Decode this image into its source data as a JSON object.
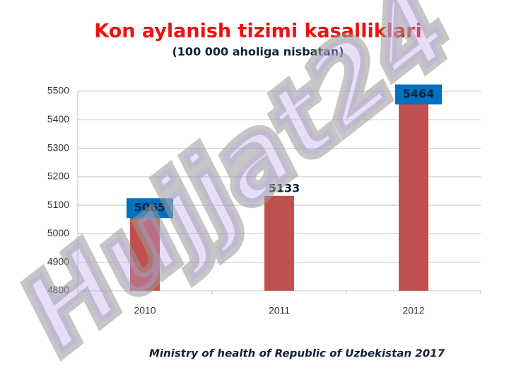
{
  "chart_data": {
    "type": "bar",
    "title": "Kon aylanish tizimi kasalliklari",
    "subtitle": "(100 000 aholiga nisbatan)",
    "source": "Ministry of health of Republic of Uzbekistan 2017",
    "watermark": "Hujjat24",
    "categories": [
      "2010",
      "2011",
      "2012"
    ],
    "values": [
      5065,
      5133,
      5464
    ],
    "label_boxes": [
      true,
      false,
      true
    ],
    "color": "#c0504d",
    "label_box_color": "#0070c0",
    "ylim": [
      4800,
      5500
    ],
    "yticks": [
      4800,
      4900,
      5000,
      5100,
      5200,
      5300,
      5400,
      5500
    ],
    "grid": true
  }
}
